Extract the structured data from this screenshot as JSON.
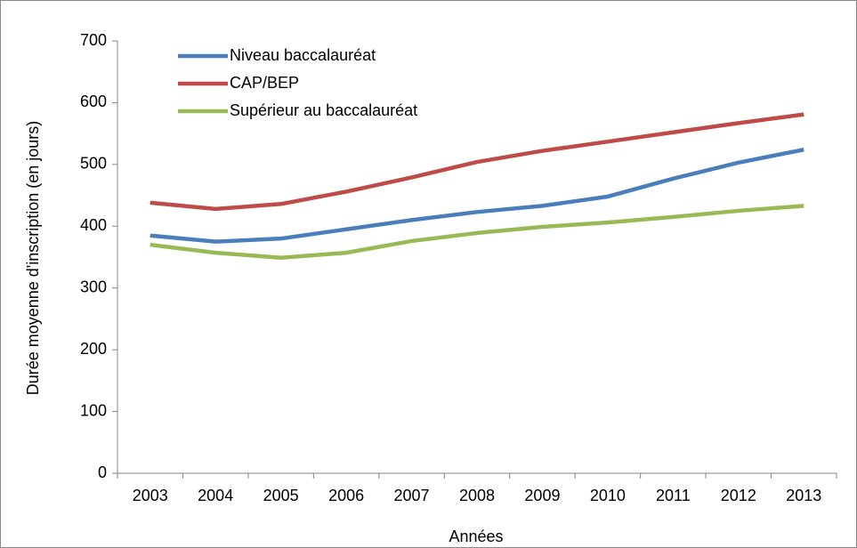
{
  "chart_data": {
    "type": "line",
    "x_label": "Années",
    "y_label": "Durée moyenne d'inscription (en jours)",
    "categories": [
      "2003",
      "2004",
      "2005",
      "2006",
      "2007",
      "2008",
      "2009",
      "2010",
      "2011",
      "2012",
      "2013"
    ],
    "series": [
      {
        "name": "Niveau baccalauréat",
        "color": "#4a7ebb",
        "values": [
          385,
          375,
          380,
          395,
          410,
          423,
          433,
          448,
          477,
          503,
          524
        ]
      },
      {
        "name": "CAP/BEP",
        "color": "#be4b48",
        "values": [
          438,
          428,
          436,
          456,
          479,
          504,
          522,
          537,
          552,
          567,
          581
        ]
      },
      {
        "name": "Supérieur au baccalauréat",
        "color": "#98b954",
        "values": [
          370,
          357,
          349,
          357,
          376,
          389,
          399,
          406,
          415,
          425,
          433
        ]
      }
    ],
    "ylim": [
      0,
      700
    ],
    "yticks": [
      0,
      100,
      200,
      300,
      400,
      500,
      600,
      700
    ],
    "legend": "top-left"
  }
}
